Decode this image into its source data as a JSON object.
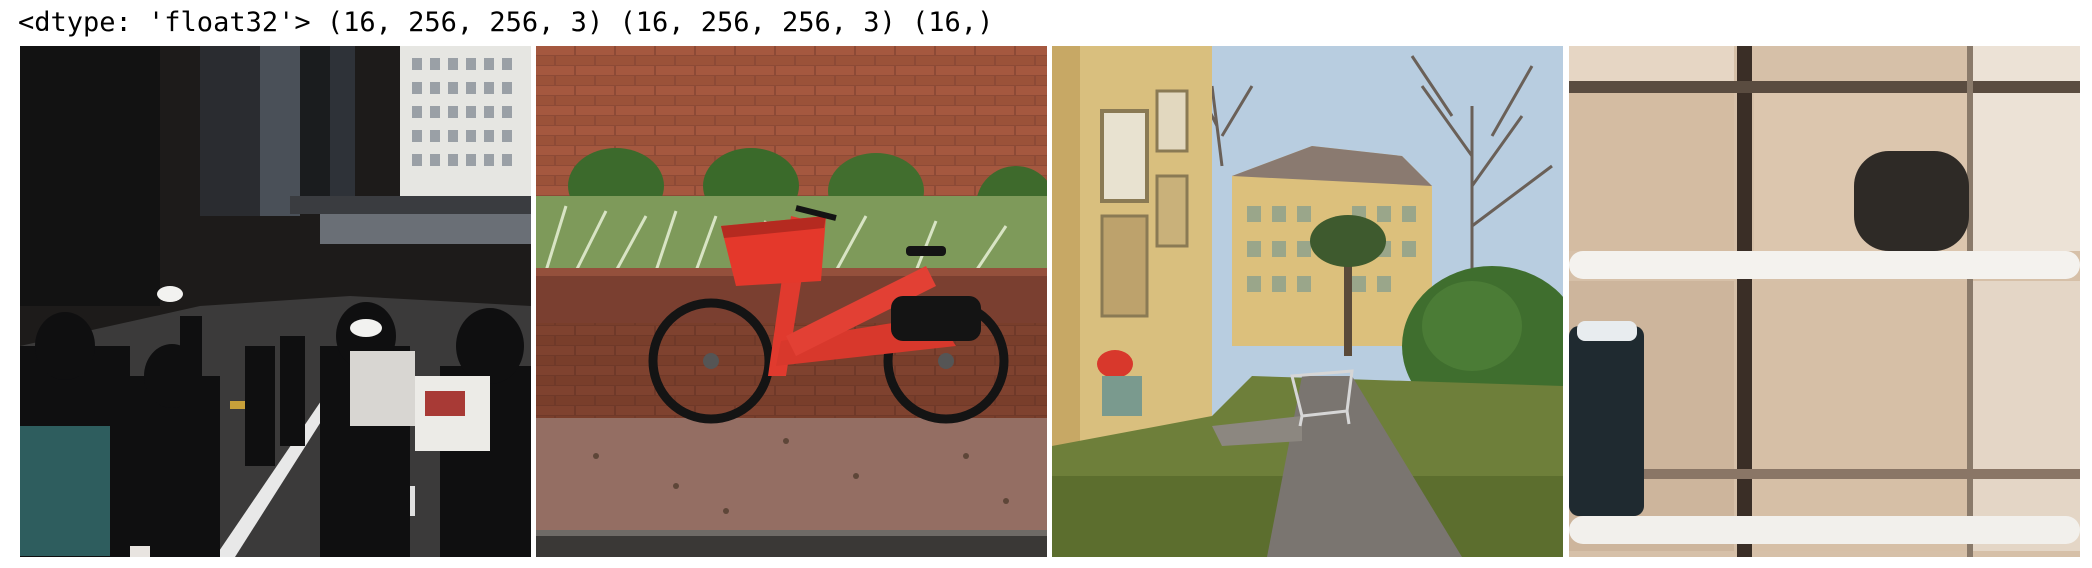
{
  "output": {
    "dtype_text": "<dtype: 'float32'> (16, 256, 256, 3) (16, 256, 256, 3) (16,)"
  },
  "images": [
    {
      "name": "street-crowd-image"
    },
    {
      "name": "red-bicycle-image"
    },
    {
      "name": "courtyard-image"
    },
    {
      "name": "blurry-window-image"
    }
  ]
}
